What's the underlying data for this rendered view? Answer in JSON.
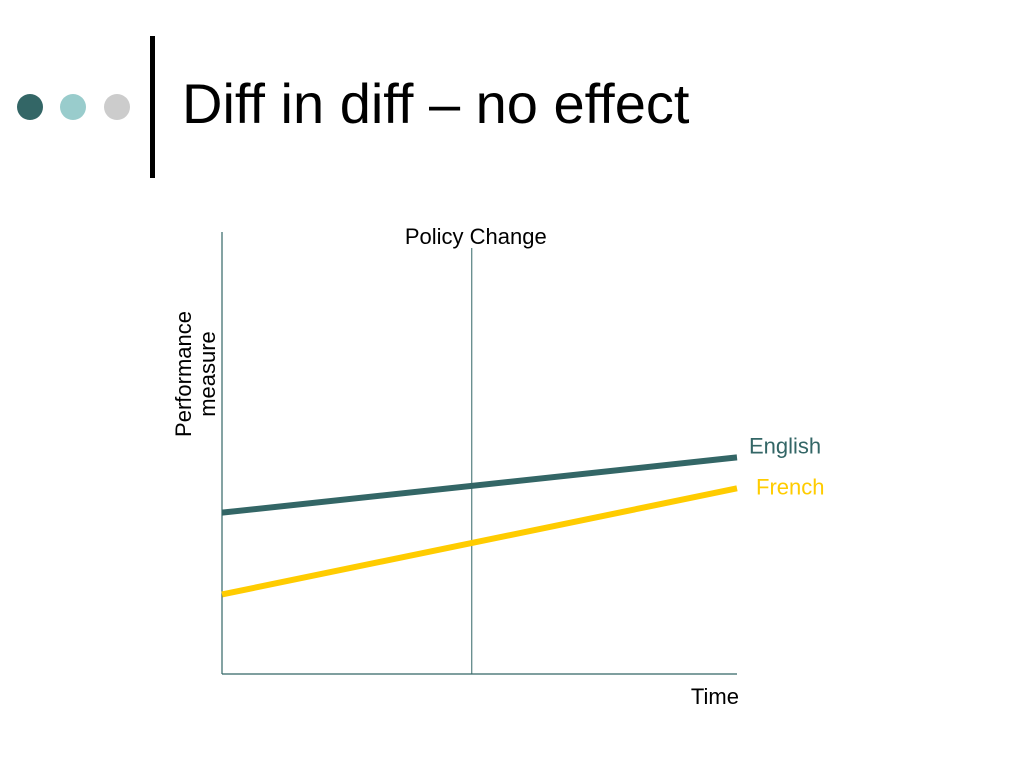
{
  "slide": {
    "title": "Diff in diff – no effect",
    "bullet_dots": [
      "#336666",
      "#99cccc",
      "#cccccc"
    ]
  },
  "chart_data": {
    "type": "line",
    "title": "",
    "xlabel": "Time",
    "ylabel": [
      "Performance",
      "measure"
    ],
    "xlim": [
      0,
      100
    ],
    "ylim": [
      0,
      100
    ],
    "grid": false,
    "annotations": [
      {
        "label": "Policy Change",
        "x": 48.5
      }
    ],
    "series": [
      {
        "name": "English",
        "color": "#336666",
        "x": [
          0,
          100
        ],
        "y": [
          36.5,
          49
        ]
      },
      {
        "name": "French",
        "color": "#ffcc00",
        "x": [
          0,
          100
        ],
        "y": [
          18,
          42
        ]
      }
    ]
  }
}
